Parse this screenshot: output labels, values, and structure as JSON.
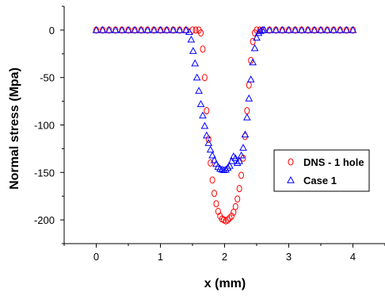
{
  "chart_data": {
    "type": "scatter",
    "xlabel": "x (mm)",
    "ylabel": "Normal stress (Mpa)",
    "xlim": [
      -0.5,
      4.5
    ],
    "ylim": [
      -225,
      25
    ],
    "xticks": [
      0,
      1,
      2,
      3,
      4
    ],
    "yticks": [
      0,
      -50,
      -100,
      -150,
      -200
    ],
    "xtick_labels": [
      "0",
      "1",
      "2",
      "3",
      "4"
    ],
    "ytick_labels": [
      "0",
      "-50",
      "-100",
      "-150",
      "-200"
    ],
    "grid": false,
    "legend_position": "right",
    "series": [
      {
        "name": "DNS - 1 hole",
        "marker": "circle",
        "color": "#ff0000",
        "x": [
          0.0,
          0.1,
          0.2,
          0.3,
          0.4,
          0.5,
          0.6,
          0.7,
          0.8,
          0.9,
          1.0,
          1.1,
          1.2,
          1.3,
          1.4,
          1.5,
          1.55,
          1.6,
          1.63,
          1.66,
          1.69,
          1.72,
          1.75,
          1.78,
          1.81,
          1.84,
          1.87,
          1.9,
          1.93,
          1.96,
          1.99,
          2.02,
          2.05,
          2.08,
          2.11,
          2.14,
          2.17,
          2.2,
          2.23,
          2.26,
          2.29,
          2.32,
          2.35,
          2.38,
          2.41,
          2.44,
          2.47,
          2.5,
          2.55,
          2.6,
          2.7,
          2.8,
          2.9,
          3.0,
          3.1,
          3.2,
          3.3,
          3.4,
          3.5,
          3.6,
          3.7,
          3.8,
          3.9,
          4.0
        ],
        "y": [
          0,
          0,
          0,
          0,
          0,
          0,
          0,
          0,
          0,
          0,
          0,
          0,
          0,
          0,
          0,
          0,
          0,
          0,
          -3,
          -20,
          -50,
          -85,
          -115,
          -140,
          -158,
          -172,
          -183,
          -191,
          -196,
          -199,
          -200,
          -201,
          -200,
          -198,
          -196,
          -192,
          -186,
          -178,
          -167,
          -153,
          -135,
          -112,
          -85,
          -58,
          -32,
          -12,
          -3,
          0,
          0,
          0,
          0,
          0,
          0,
          0,
          0,
          0,
          0,
          0,
          0,
          0,
          0,
          0,
          0,
          0
        ]
      },
      {
        "name": "Case 1",
        "marker": "triangle",
        "color": "#0000ff",
        "x": [
          0.0,
          0.1,
          0.2,
          0.3,
          0.4,
          0.5,
          0.6,
          0.7,
          0.8,
          0.9,
          1.0,
          1.1,
          1.2,
          1.3,
          1.4,
          1.45,
          1.48,
          1.51,
          1.54,
          1.57,
          1.6,
          1.63,
          1.66,
          1.69,
          1.72,
          1.75,
          1.78,
          1.81,
          1.84,
          1.87,
          1.9,
          1.93,
          1.96,
          1.99,
          2.02,
          2.05,
          2.08,
          2.11,
          2.14,
          2.17,
          2.2,
          2.23,
          2.26,
          2.29,
          2.32,
          2.35,
          2.38,
          2.41,
          2.44,
          2.47,
          2.5,
          2.53,
          2.56,
          2.59,
          2.62,
          2.7,
          2.8,
          2.9,
          3.0,
          3.1,
          3.2,
          3.3,
          3.4,
          3.5,
          3.6,
          3.7,
          3.8,
          3.9,
          4.0
        ],
        "y": [
          0,
          0,
          0,
          0,
          0,
          0,
          0,
          0,
          0,
          0,
          0,
          0,
          0,
          0,
          0,
          -2,
          -10,
          -22,
          -35,
          -50,
          -64,
          -78,
          -90,
          -101,
          -111,
          -119,
          -126,
          -132,
          -137,
          -141,
          -144,
          -146,
          -147,
          -147.5,
          -147,
          -145,
          -143,
          -138,
          -133,
          -135,
          -140,
          -138,
          -132,
          -124,
          -110,
          -92,
          -72,
          -52,
          -34,
          -19,
          -8,
          -3,
          -1,
          0,
          0,
          0,
          0,
          0,
          0,
          0,
          0,
          0,
          0,
          0,
          0,
          0,
          0,
          0,
          0
        ]
      }
    ]
  }
}
